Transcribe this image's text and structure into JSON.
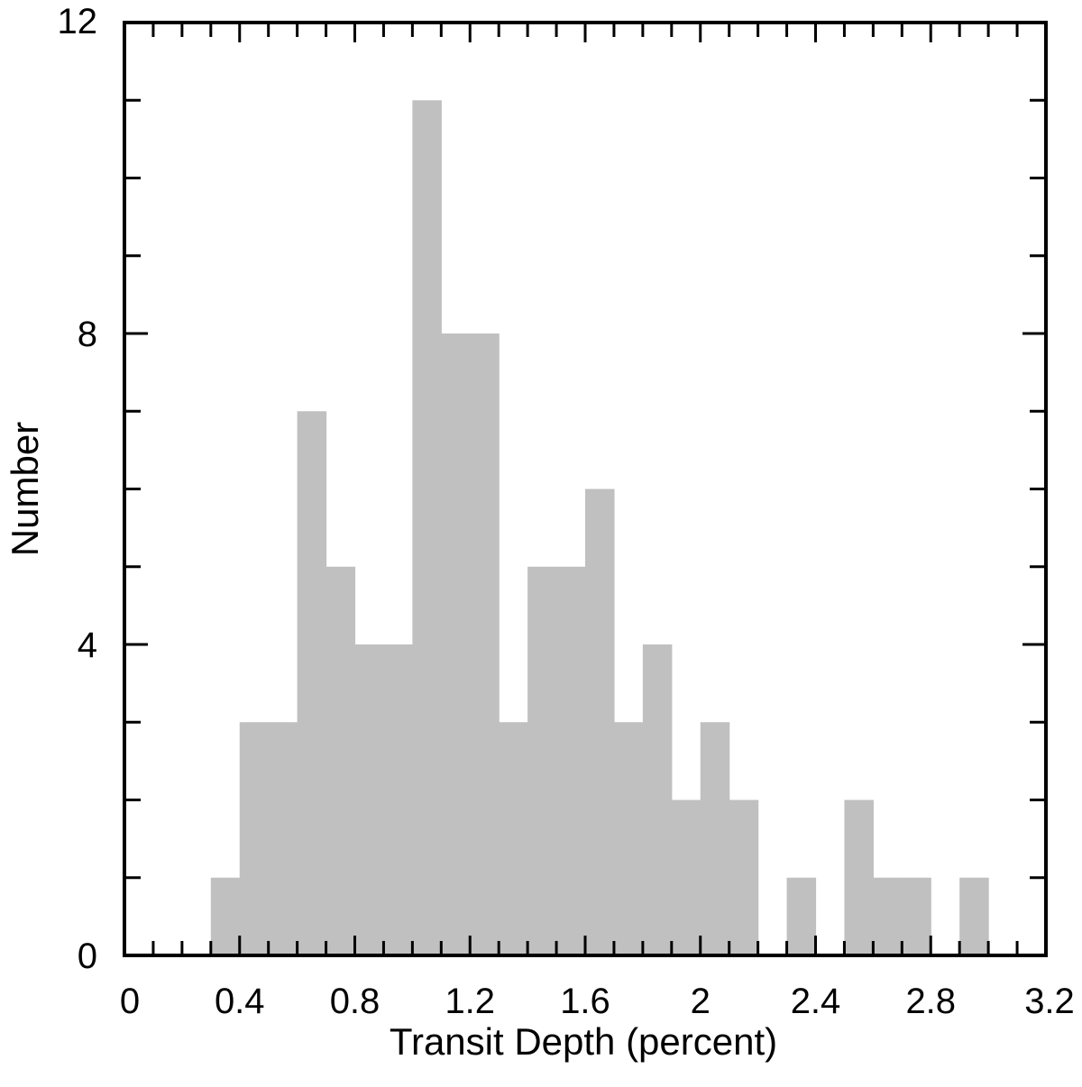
{
  "chart_data": {
    "type": "bar",
    "title": "",
    "xlabel": "Transit Depth (percent)",
    "ylabel": "Number",
    "xlim": [
      0,
      3.2
    ],
    "ylim": [
      0,
      12
    ],
    "bin_width": 0.1,
    "x_ticks": [
      0,
      0.4,
      0.8,
      1.2,
      1.6,
      2,
      2.4,
      2.8,
      3.2
    ],
    "x_tick_labels": [
      "0",
      "0.4",
      "0.8",
      "1.2",
      "1.6",
      "2",
      "2.4",
      "2.8",
      "3.2"
    ],
    "y_ticks": [
      0,
      4,
      8,
      12
    ],
    "y_tick_labels": [
      "0",
      "4",
      "8",
      "12"
    ],
    "bins": [
      {
        "x0": 0.3,
        "x1": 0.4,
        "count": 1
      },
      {
        "x0": 0.4,
        "x1": 0.5,
        "count": 3
      },
      {
        "x0": 0.5,
        "x1": 0.6,
        "count": 3
      },
      {
        "x0": 0.6,
        "x1": 0.7,
        "count": 7
      },
      {
        "x0": 0.7,
        "x1": 0.8,
        "count": 5
      },
      {
        "x0": 0.8,
        "x1": 0.9,
        "count": 4
      },
      {
        "x0": 0.9,
        "x1": 1.0,
        "count": 4
      },
      {
        "x0": 1.0,
        "x1": 1.1,
        "count": 11
      },
      {
        "x0": 1.1,
        "x1": 1.2,
        "count": 8
      },
      {
        "x0": 1.2,
        "x1": 1.3,
        "count": 8
      },
      {
        "x0": 1.3,
        "x1": 1.4,
        "count": 3
      },
      {
        "x0": 1.4,
        "x1": 1.5,
        "count": 5
      },
      {
        "x0": 1.5,
        "x1": 1.6,
        "count": 5
      },
      {
        "x0": 1.6,
        "x1": 1.7,
        "count": 6
      },
      {
        "x0": 1.7,
        "x1": 1.8,
        "count": 3
      },
      {
        "x0": 1.8,
        "x1": 1.9,
        "count": 4
      },
      {
        "x0": 1.9,
        "x1": 2.0,
        "count": 2
      },
      {
        "x0": 2.0,
        "x1": 2.1,
        "count": 3
      },
      {
        "x0": 2.1,
        "x1": 2.2,
        "count": 2
      },
      {
        "x0": 2.3,
        "x1": 2.4,
        "count": 1
      },
      {
        "x0": 2.5,
        "x1": 2.6,
        "count": 2
      },
      {
        "x0": 2.6,
        "x1": 2.7,
        "count": 1
      },
      {
        "x0": 2.7,
        "x1": 2.8,
        "count": 1
      },
      {
        "x0": 2.9,
        "x1": 3.0,
        "count": 1
      }
    ],
    "bar_color": "#c0c0c0",
    "grid": false,
    "legend": "none"
  }
}
